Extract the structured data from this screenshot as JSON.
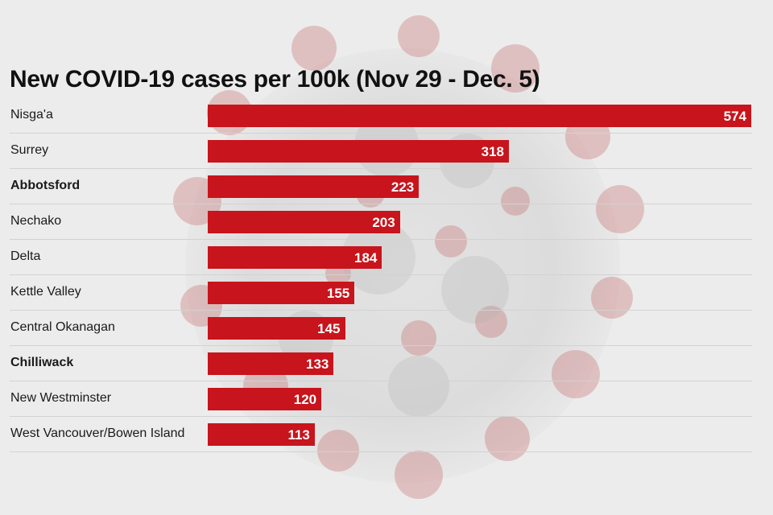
{
  "chart_data": {
    "type": "bar",
    "orientation": "horizontal",
    "title": "New COVID-19 cases per 100k (Nov 29 - Dec. 5)",
    "categories": [
      "Nisga'a",
      "Surrey",
      "Abbotsford",
      "Nechako",
      "Delta",
      "Kettle Valley",
      "Central Okanagan",
      "Chilliwack",
      "New Westminster",
      "West Vancouver/Bowen Island"
    ],
    "values": [
      574,
      318,
      223,
      203,
      184,
      155,
      145,
      133,
      120,
      113
    ],
    "bold_categories": [
      "Abbotsford",
      "Chilliwack"
    ],
    "bar_color": "#c8141c",
    "value_label_color": "#ffffff",
    "xlim": [
      0,
      574
    ],
    "grid": false,
    "legend": "none",
    "background": "coronavirus illustration"
  }
}
